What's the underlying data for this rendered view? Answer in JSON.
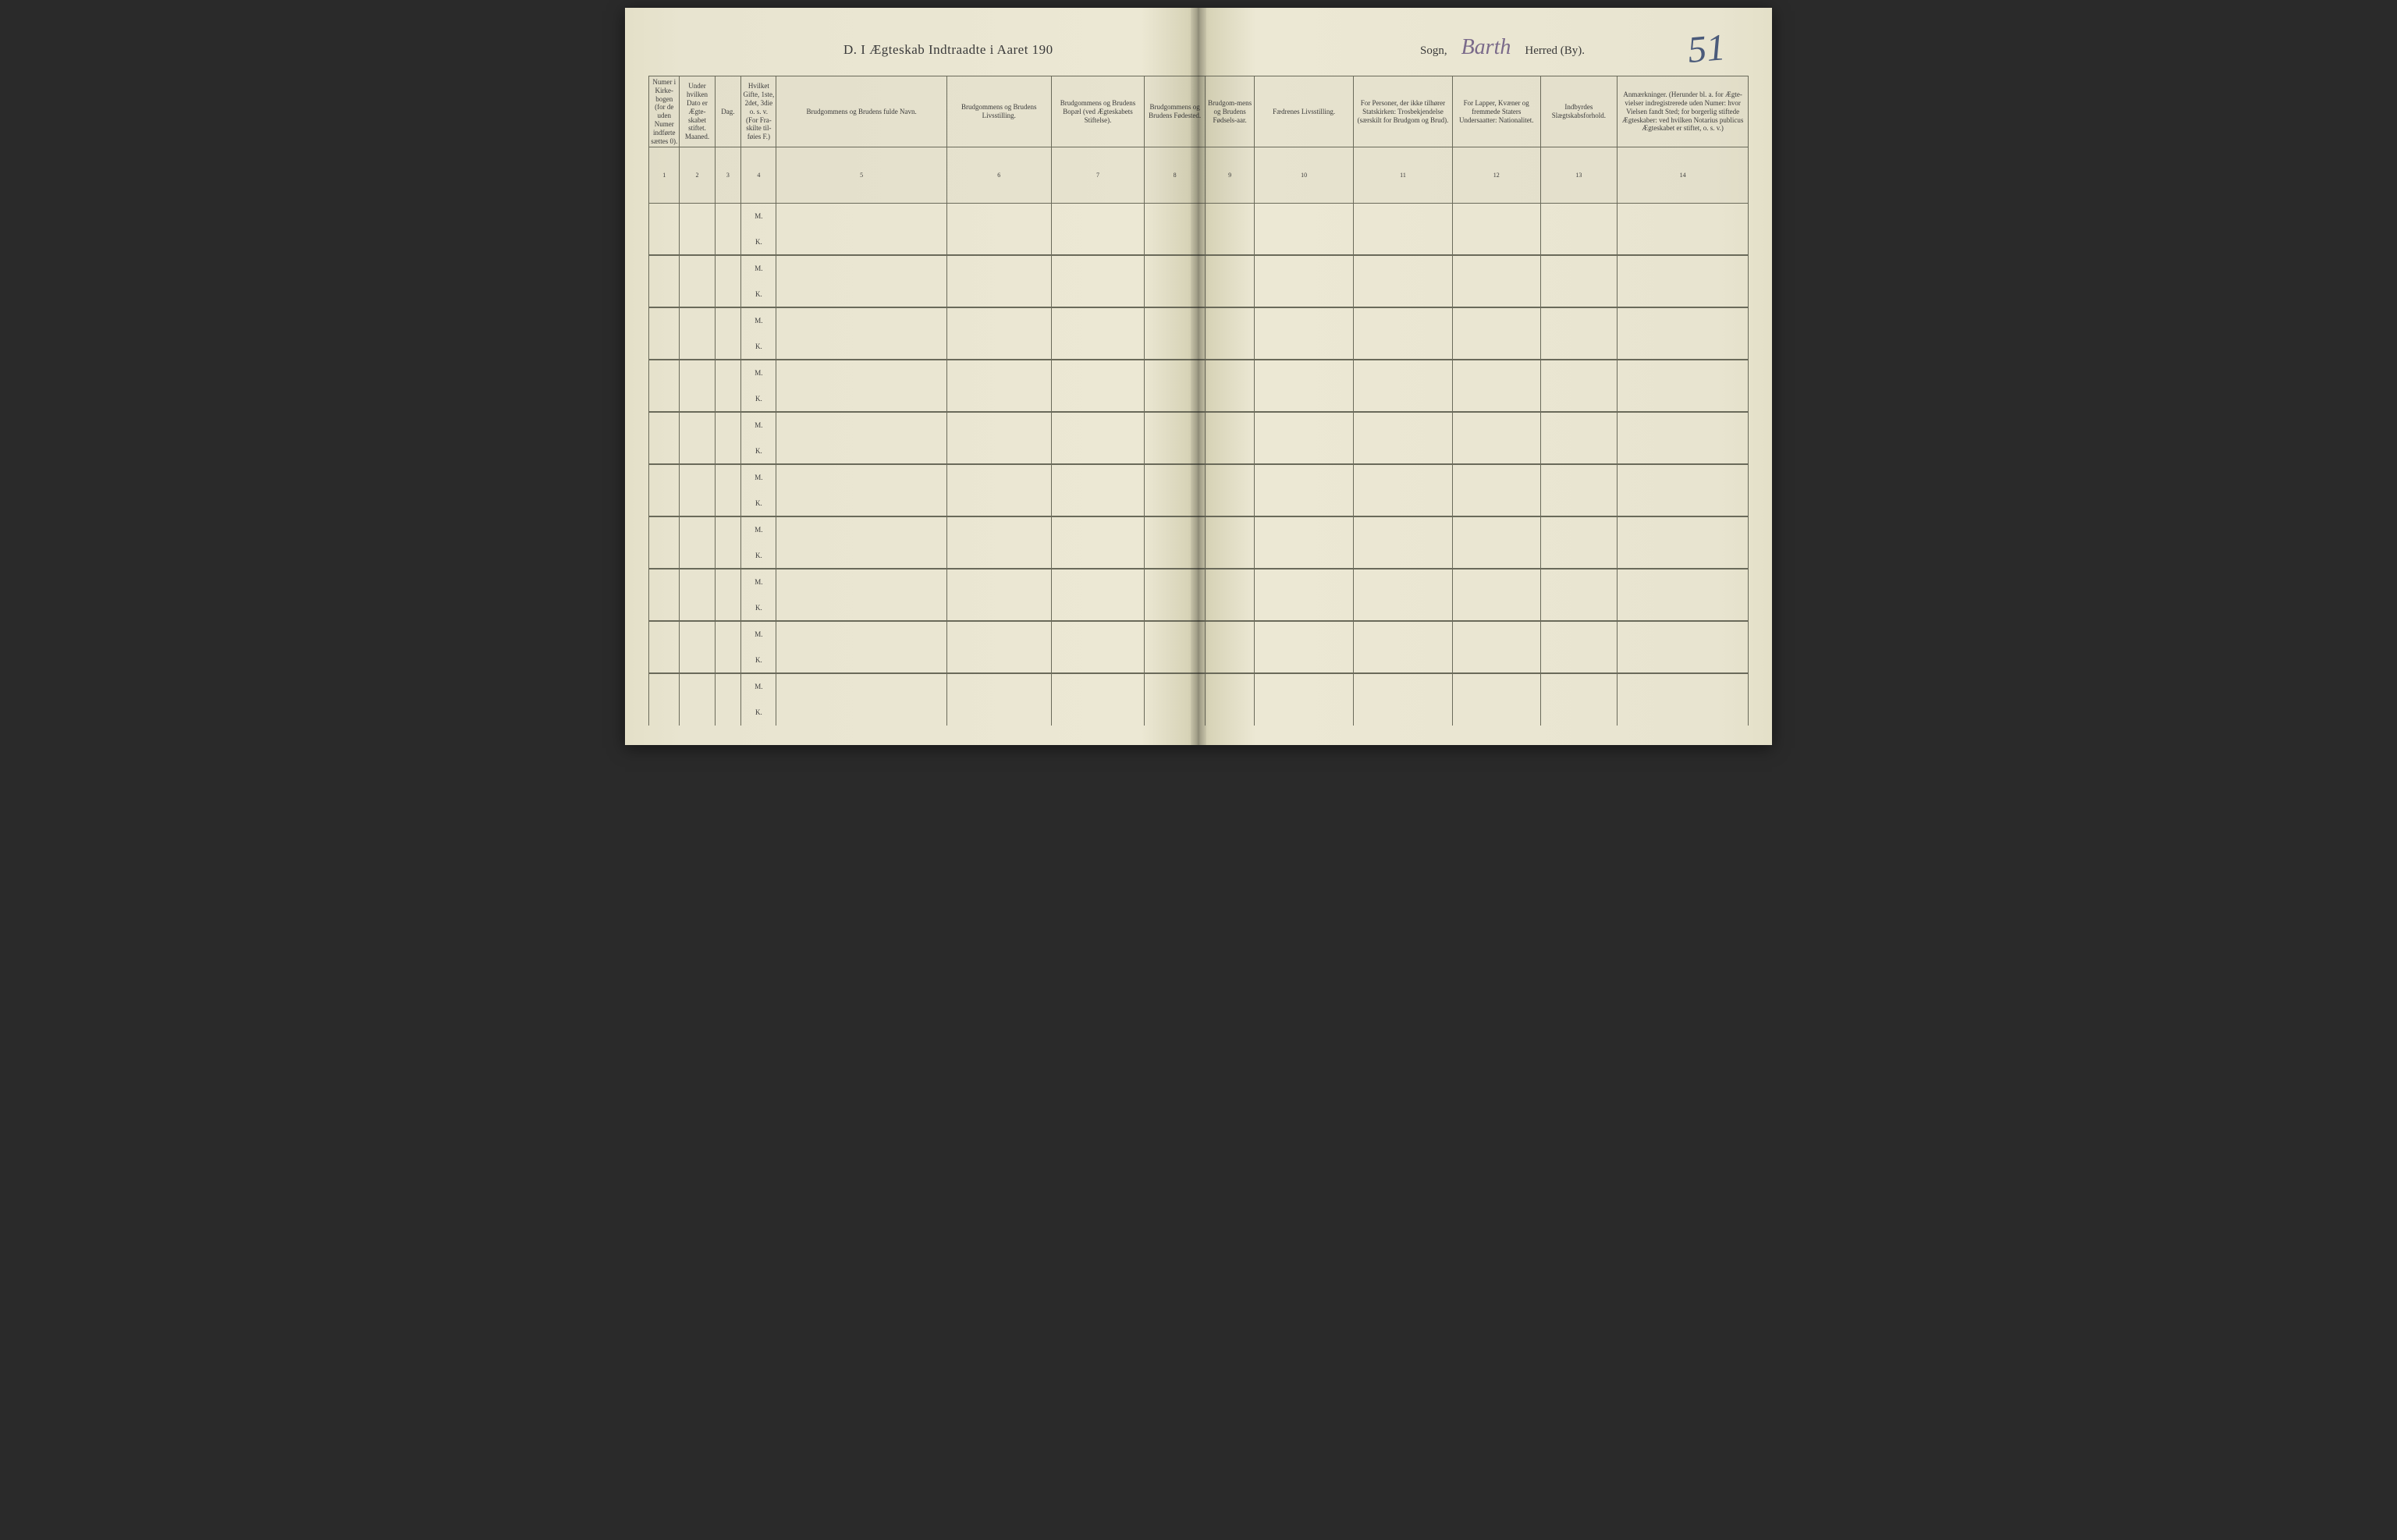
{
  "title": {
    "left": "D. I Ægteskab Indtraadte i Aaret 190",
    "sogn_label": "Sogn,",
    "herred_handwritten": "Barth",
    "herred_label": "Herred (By).",
    "page_number": "51"
  },
  "columns": [
    {
      "num": "1",
      "header": "Numer i Kirke-bogen (for de uden Numer indførte sættes 0).",
      "width": "col-1"
    },
    {
      "num": "2",
      "header": "Under hvilken Dato er Ægte-skabet stiftet.\nMaaned.",
      "width": "col-2"
    },
    {
      "num": "3",
      "header": "Dag.",
      "width": "col-3"
    },
    {
      "num": "4",
      "header": "Hvilket Gifte, 1ste, 2det, 3die o. s. v. (For Fra-skilte til-føies F.)",
      "width": "col-4"
    },
    {
      "num": "5",
      "header": "Brudgommens og Brudens fulde Navn.",
      "width": "col-5"
    },
    {
      "num": "6",
      "header": "Brudgommens og Brudens Livsstilling.",
      "width": "col-6"
    },
    {
      "num": "7",
      "header": "Brudgommens og Brudens Bopæl (ved Ægteskabets Stiftelse).",
      "width": "col-7"
    },
    {
      "num": "8",
      "header": "Brudgommens og Brudens Fødested.",
      "width": "col-8"
    },
    {
      "num": "9",
      "header": "Brudgom-mens og Brudens Fødsels-aar.",
      "width": "col-9"
    },
    {
      "num": "10",
      "header": "Fædrenes Livsstilling.",
      "width": "col-10"
    },
    {
      "num": "11",
      "header": "For Personer, der ikke tilhører Statskirken: Trosbekjendelse (særskilt for Brudgom og Brud).",
      "width": "col-11"
    },
    {
      "num": "12",
      "header": "For Lapper, Kvæner og fremmede Staters Undersaatter: Nationalitet.",
      "width": "col-12"
    },
    {
      "num": "13",
      "header": "Indbyrdes Slægtskabsforhold.",
      "width": "col-13"
    },
    {
      "num": "14",
      "header": "Anmærkninger. (Herunder bl. a. for Ægte-vielser indregistrerede uden Numer: hvor Vielsen fandt Sted; for borgerlig stiftede Ægteskaber: ved hvilken Notarius publicus Ægteskabet er stiftet, o. s. v.)",
      "width": "col-14"
    }
  ],
  "row_labels": {
    "m": "M.",
    "k": "K."
  },
  "num_entries": 10,
  "styling": {
    "page_bg": "#e8e4d0",
    "border_color": "#6a6a5a",
    "text_color": "#3a3a3a",
    "handwritten_color": "#7a6a8a",
    "page_number_color": "#4a5a7a",
    "header_font_size": 9,
    "title_font_size": 17
  }
}
